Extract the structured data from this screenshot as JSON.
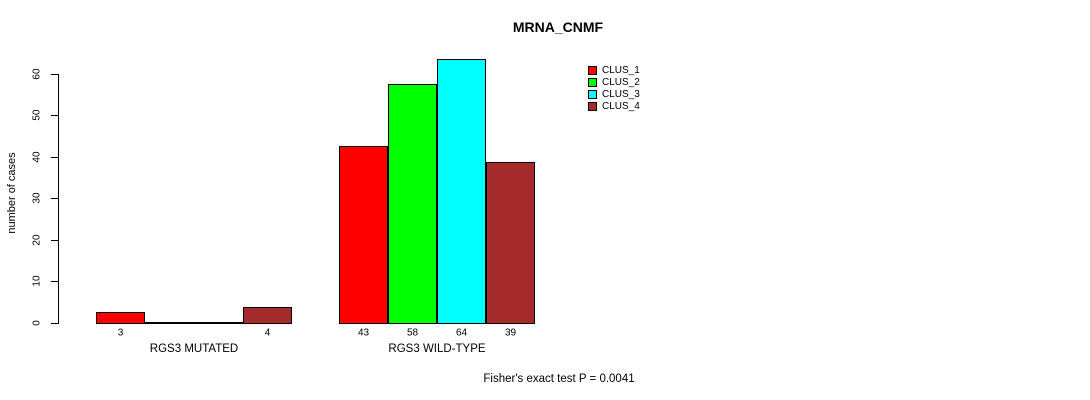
{
  "chart_data": {
    "type": "bar",
    "title": "MRNA_CNMF",
    "ylabel": "number of cases",
    "xlabel": "",
    "categories": [
      "RGS3 MUTATED",
      "RGS3 WILD-TYPE"
    ],
    "series": [
      {
        "name": "CLUS_1",
        "color": "#FF0000",
        "values": [
          3,
          43
        ]
      },
      {
        "name": "CLUS_2",
        "color": "#00FF00",
        "values": [
          0,
          58
        ]
      },
      {
        "name": "CLUS_3",
        "color": "#00FFFF",
        "values": [
          0,
          64
        ]
      },
      {
        "name": "CLUS_4",
        "color": "#A52A2A",
        "values": [
          4,
          39
        ]
      }
    ],
    "yticks": [
      0,
      10,
      20,
      30,
      40,
      50,
      60
    ],
    "ylim": [
      0,
      64
    ],
    "grid": "off",
    "legend_position": "top-right",
    "legend_entries": [
      "CLUS_1",
      "CLUS_2",
      "CLUS_3",
      "CLUS_4"
    ],
    "bar_value_labels": {
      "group1": [
        3,
        null,
        null,
        4
      ],
      "group2": [
        43,
        58,
        64,
        39
      ]
    },
    "annotation": "Fisher's exact test P = 0.0041"
  }
}
